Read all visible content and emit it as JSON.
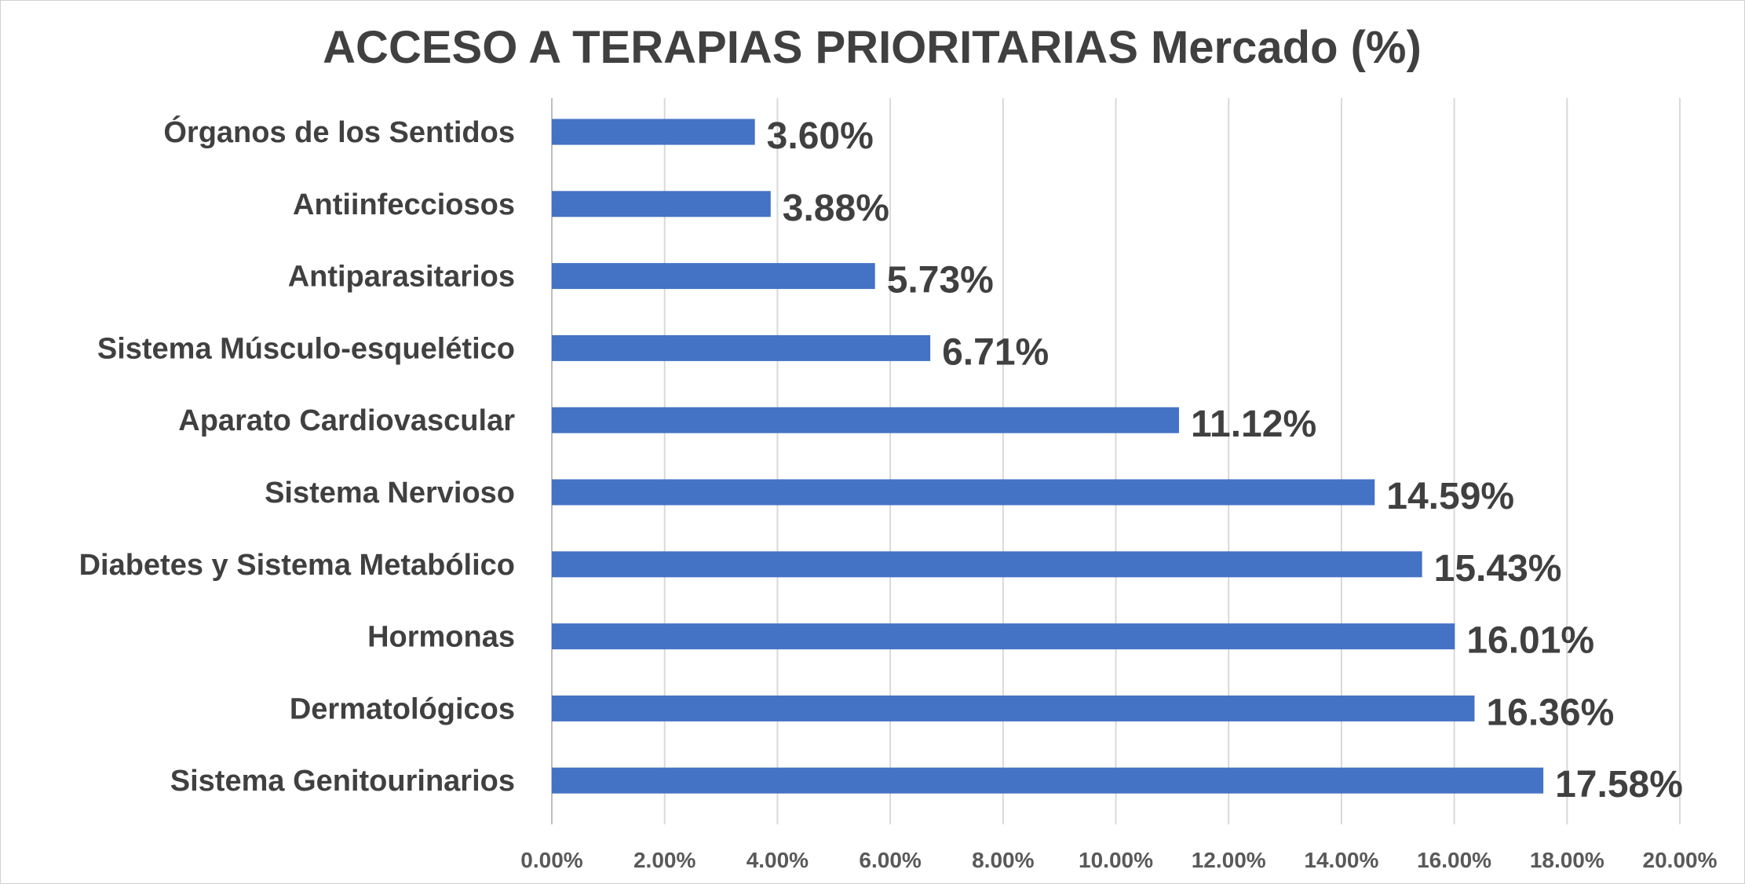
{
  "chart_data": {
    "type": "bar",
    "orientation": "horizontal",
    "title": "ACCESO A TERAPIAS PRIORITARIAS Mercado (%)",
    "xlabel": "",
    "ylabel": "",
    "xlim": [
      0,
      20
    ],
    "grid": true,
    "legend": "none",
    "bar_color": "#4472C4",
    "categories": [
      "Órganos de los Sentidos",
      "Antiinfecciosos",
      "Antiparasitarios",
      "Sistema Músculo-esquelético",
      "Aparato Cardiovascular",
      "Sistema Nervioso",
      "Diabetes y Sistema Metabólico",
      "Hormonas",
      "Dermatológicos",
      "Sistema Genitourinarios"
    ],
    "values": [
      3.6,
      3.88,
      5.73,
      6.71,
      11.12,
      14.59,
      15.43,
      16.01,
      16.36,
      17.58
    ],
    "data_labels": [
      "3.60%",
      "3.88%",
      "5.73%",
      "6.71%",
      "11.12%",
      "14.59%",
      "15.43%",
      "16.01%",
      "16.36%",
      "17.58%"
    ],
    "ticks": [
      0,
      2,
      4,
      6,
      8,
      10,
      12,
      14,
      16,
      18,
      20
    ],
    "tick_labels": [
      "0.00%",
      "2.00%",
      "4.00%",
      "6.00%",
      "8.00%",
      "10.00%",
      "12.00%",
      "14.00%",
      "16.00%",
      "18.00%",
      "20.00%"
    ]
  }
}
